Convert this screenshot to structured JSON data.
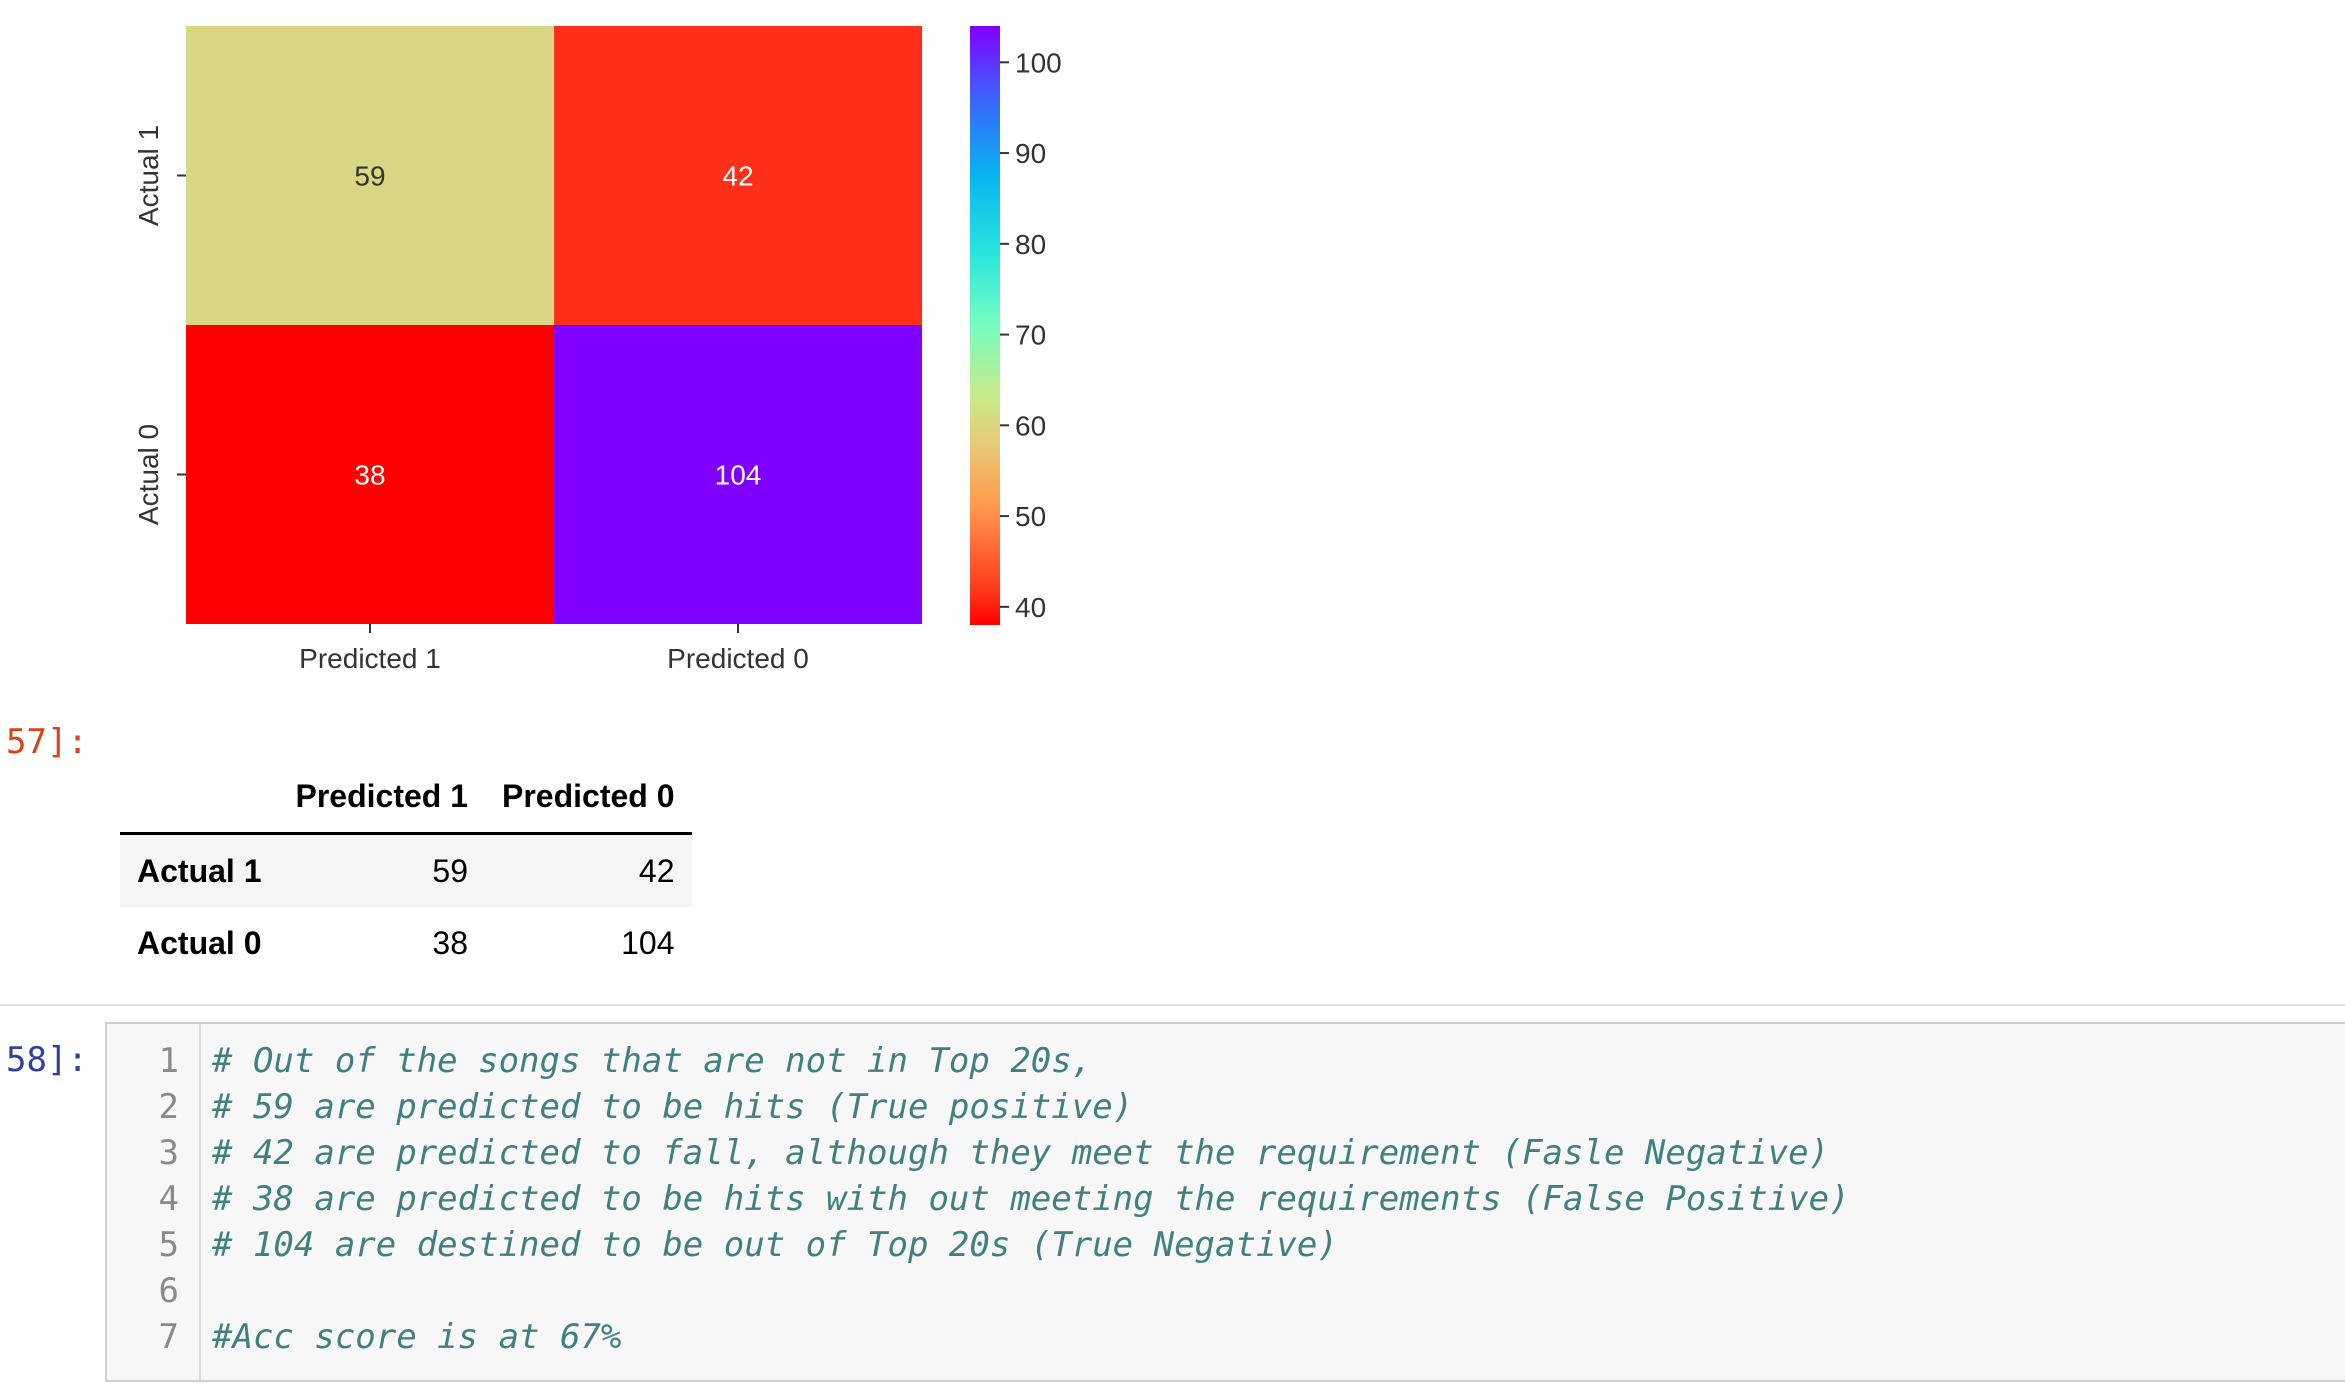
{
  "chart_data": {
    "type": "heatmap",
    "rows": [
      "Actual 1",
      "Actual 0"
    ],
    "columns": [
      "Predicted 1",
      "Predicted 0"
    ],
    "values": [
      [
        59,
        42
      ],
      [
        38,
        104
      ]
    ],
    "colormap": "rainbow_r",
    "colorbar": {
      "min": 38,
      "max": 104,
      "ticks": [
        40,
        50,
        60,
        70,
        80,
        90,
        100
      ]
    },
    "cell_colors": [
      [
        "#dbd683",
        "#ff2f1a"
      ],
      [
        "#ff0000",
        "#8000ff"
      ]
    ],
    "annotation_colors": [
      [
        "#333333",
        "#ffffff"
      ],
      [
        "#ffffff",
        "#ffffff"
      ]
    ]
  },
  "output_prompt": "57]:",
  "input_prompt": "58]:",
  "dataframe": {
    "columns": [
      "Predicted 1",
      "Predicted 0"
    ],
    "rows": [
      {
        "label": "Actual 1",
        "values": [
          "59",
          "42"
        ]
      },
      {
        "label": "Actual 0",
        "values": [
          "38",
          "104"
        ]
      }
    ]
  },
  "code_cell": {
    "lines": [
      {
        "no": "1",
        "text": "# Out of the songs that are not in Top 20s,"
      },
      {
        "no": "2",
        "text": "# 59 are predicted to be hits (True positive)"
      },
      {
        "no": "3",
        "text": "# 42 are predicted to fall, although they meet the requirement (Fasle Negative)"
      },
      {
        "no": "4",
        "text": "# 38 are predicted to be hits with out meeting the requirements (False Positive)"
      },
      {
        "no": "5",
        "text": "# 104 are destined to be out of Top 20s (True Negative)"
      },
      {
        "no": "6",
        "text": ""
      },
      {
        "no": "7",
        "text": "#Acc score is at 67%"
      }
    ]
  },
  "colors": {
    "prompt_out": "#d84315",
    "prompt_in": "#303f9f",
    "comment": "#408080"
  }
}
